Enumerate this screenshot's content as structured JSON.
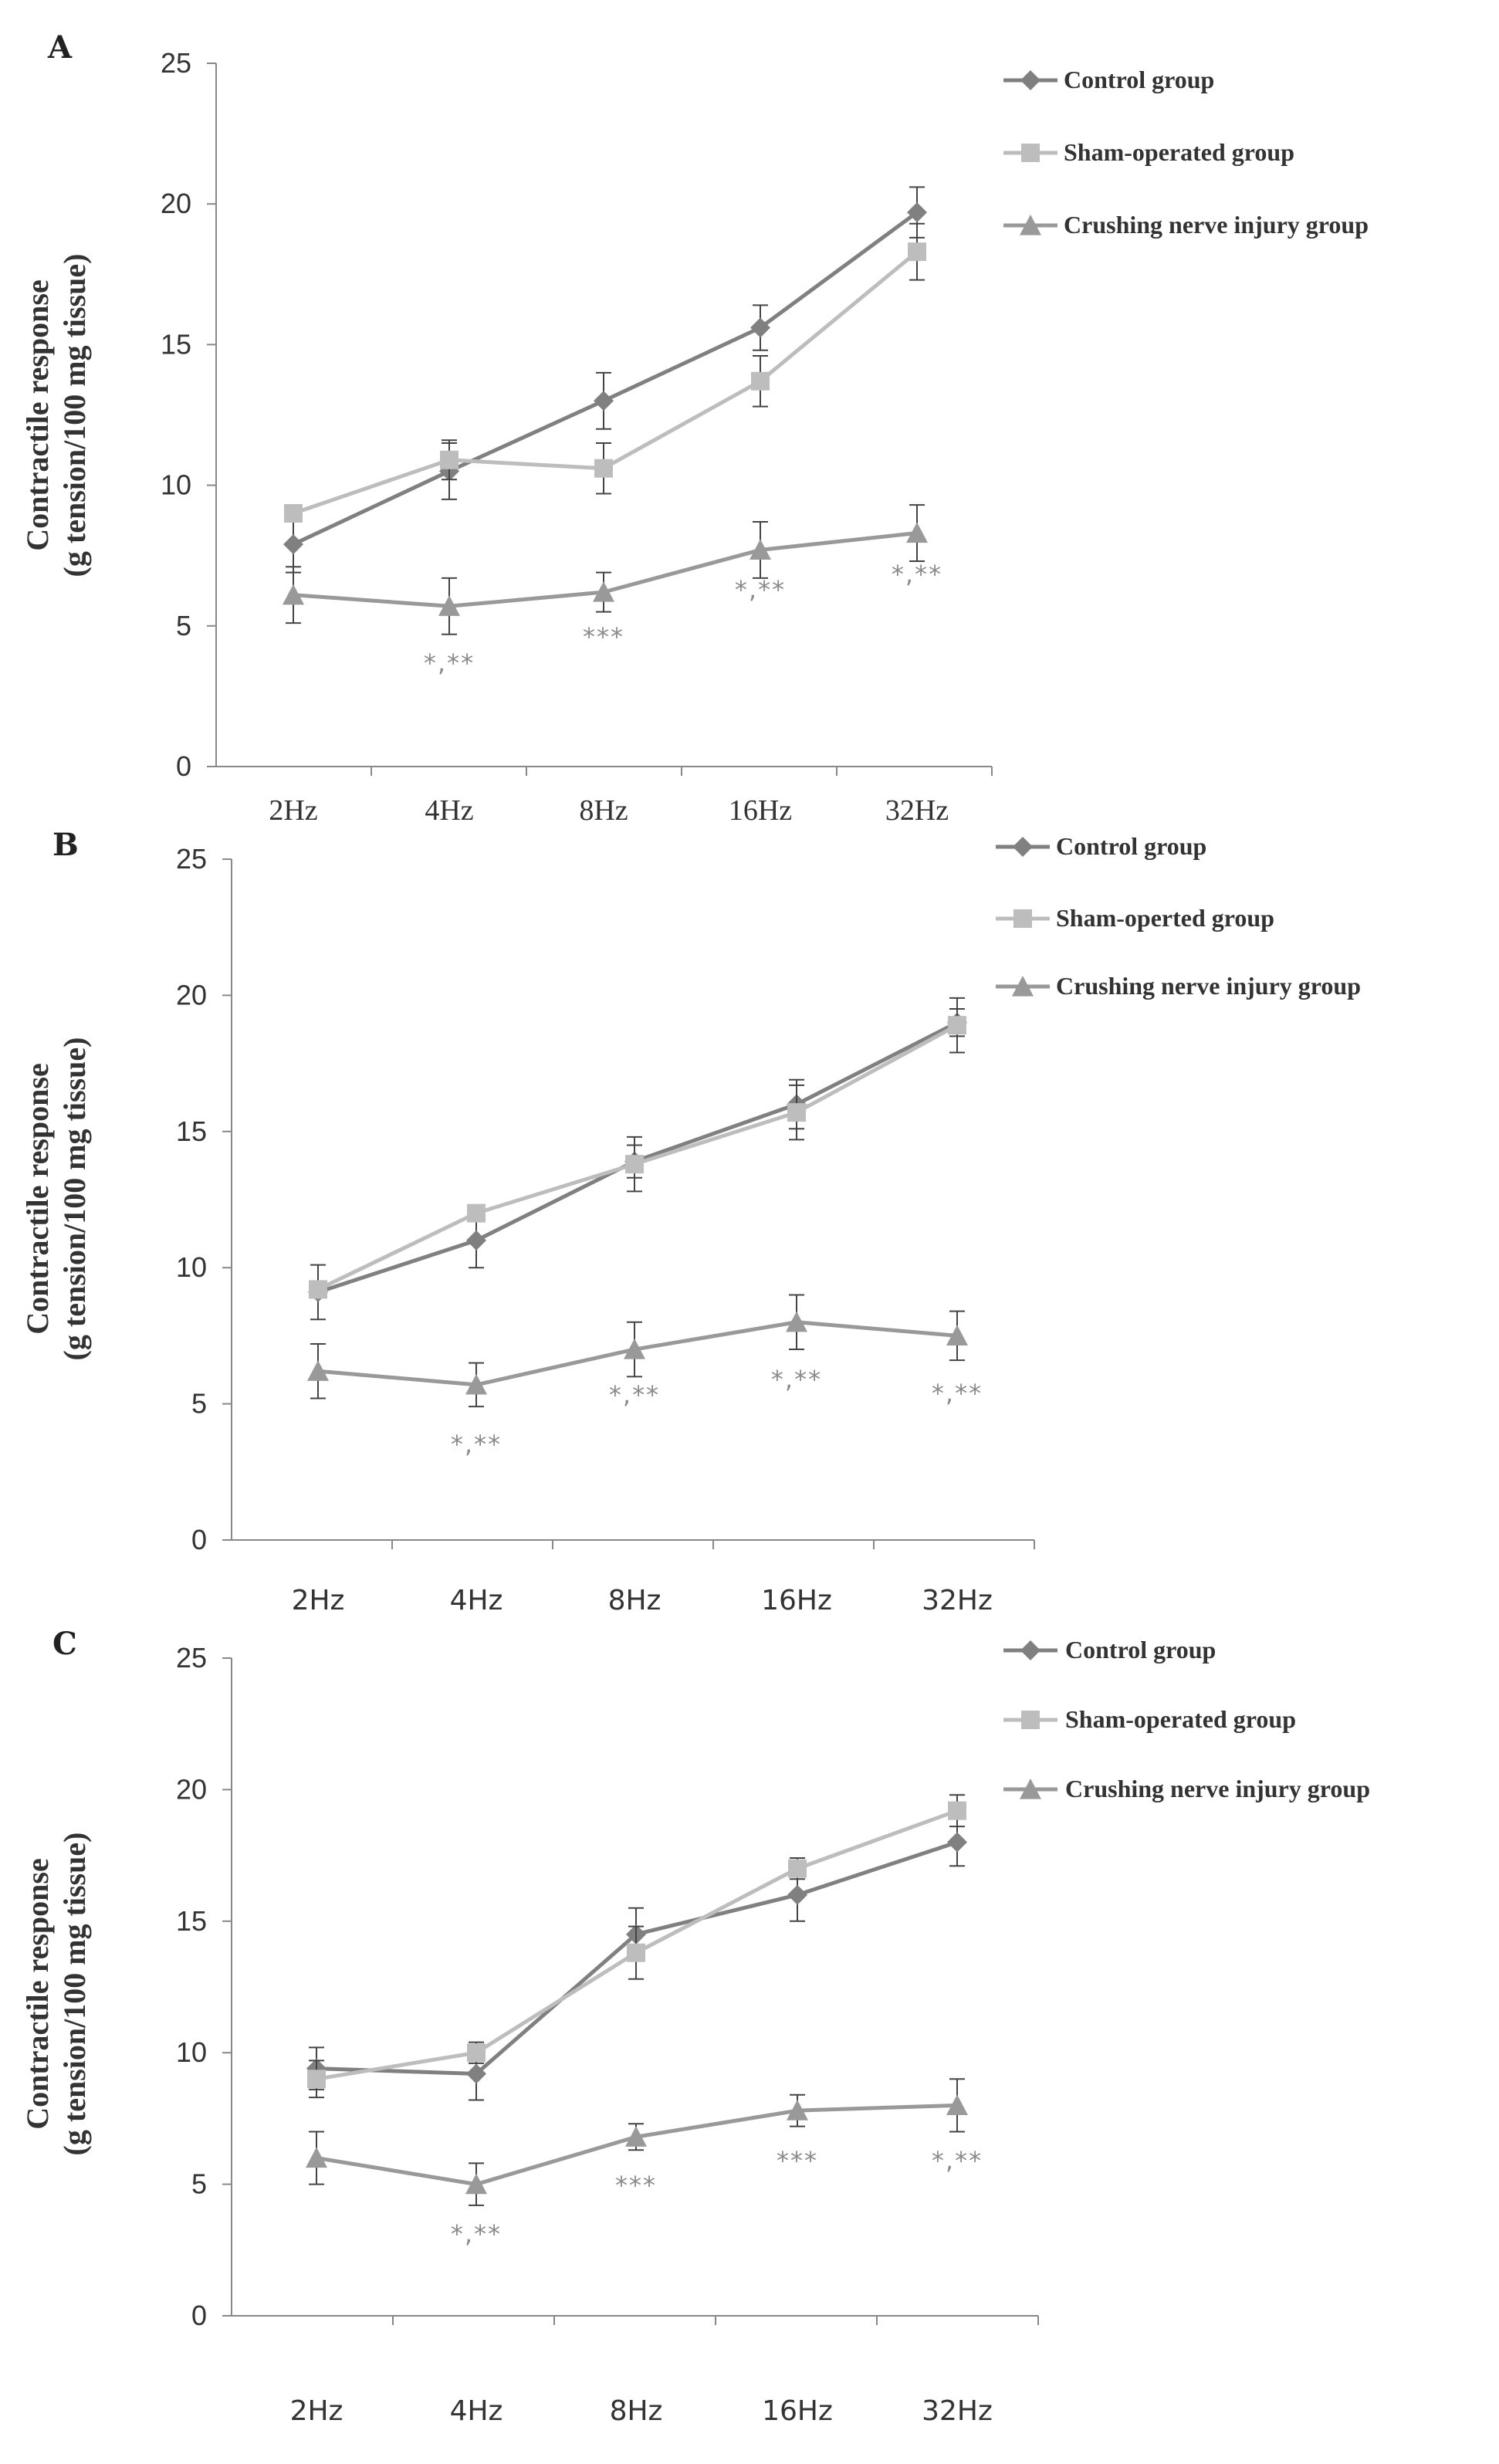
{
  "chart_data": [
    {
      "type": "line",
      "panel_label": "A",
      "title": "",
      "categories": [
        "2Hz",
        "4Hz",
        "8Hz",
        "16Hz",
        "32Hz"
      ],
      "xlabel": "",
      "ylabel_lines": [
        "Contractile response",
        "(g tension/100 mg tissue)"
      ],
      "ylim": [
        0,
        25
      ],
      "yticks": [
        0,
        5,
        10,
        15,
        20,
        25
      ],
      "grid": false,
      "legend_position": "top-right",
      "series": [
        {
          "name": "Control group",
          "marker": "diamond",
          "color": "#808080",
          "values": [
            7.9,
            10.5,
            13.0,
            15.6,
            19.7
          ],
          "errors": [
            1.0,
            1.0,
            1.0,
            0.8,
            0.9
          ]
        },
        {
          "name": "Sham-operated group",
          "marker": "square",
          "color": "#bdbdbd",
          "values": [
            9.0,
            10.9,
            10.6,
            13.7,
            18.3
          ],
          "errors": [
            0.0,
            0.7,
            0.9,
            0.9,
            1.0
          ]
        },
        {
          "name": "Crushing nerve injury group",
          "marker": "triangle",
          "color": "#999999",
          "values": [
            6.1,
            5.7,
            6.2,
            7.7,
            8.3
          ],
          "errors": [
            1.0,
            1.0,
            0.7,
            1.0,
            1.0
          ]
        }
      ],
      "annotations": [
        "",
        "*,**",
        "***",
        "*,**",
        "*,**"
      ]
    },
    {
      "type": "line",
      "panel_label": "B",
      "title": "",
      "categories": [
        "2Hz",
        "4Hz",
        "8Hz",
        "16Hz",
        "32Hz"
      ],
      "xlabel": "",
      "ylabel_lines": [
        "Contractile response",
        "(g tension/100 mg tissue)"
      ],
      "ylim": [
        0,
        25
      ],
      "yticks": [
        0,
        5,
        10,
        15,
        20,
        25
      ],
      "grid": false,
      "legend_position": "top-right",
      "series": [
        {
          "name": "Control group",
          "marker": "diamond",
          "color": "#808080",
          "values": [
            9.1,
            11.0,
            13.9,
            16.0,
            19.0
          ],
          "errors": [
            1.0,
            1.0,
            0.6,
            0.9,
            0.5
          ]
        },
        {
          "name": "Sham-operted group",
          "marker": "square",
          "color": "#bdbdbd",
          "values": [
            9.2,
            12.0,
            13.8,
            15.7,
            18.9
          ],
          "errors": [
            0.0,
            0.0,
            1.0,
            1.0,
            1.0
          ]
        },
        {
          "name": "Crushing nerve injury group",
          "marker": "triangle",
          "color": "#999999",
          "values": [
            6.2,
            5.7,
            7.0,
            8.0,
            7.5
          ],
          "errors": [
            1.0,
            0.8,
            1.0,
            1.0,
            0.9
          ]
        }
      ],
      "annotations": [
        "",
        "*,**",
        "*,**",
        "*,**",
        "*,**"
      ]
    },
    {
      "type": "line",
      "panel_label": "C",
      "title": "",
      "categories": [
        "2Hz",
        "4Hz",
        "8Hz",
        "16Hz",
        "32Hz"
      ],
      "xlabel": "",
      "ylabel_lines": [
        "Contractile response",
        "(g tension/100 mg tissue)"
      ],
      "ylim": [
        0,
        25
      ],
      "yticks": [
        0,
        5,
        10,
        15,
        20,
        25
      ],
      "grid": false,
      "legend_position": "top-right",
      "series": [
        {
          "name": "Control group",
          "marker": "diamond",
          "color": "#808080",
          "values": [
            9.4,
            9.2,
            14.5,
            16.0,
            18.0
          ],
          "errors": [
            0.8,
            1.0,
            1.0,
            1.0,
            0.9
          ]
        },
        {
          "name": "Sham-operated group",
          "marker": "square",
          "color": "#bdbdbd",
          "values": [
            9.0,
            10.0,
            13.8,
            17.0,
            19.2
          ],
          "errors": [
            0.7,
            0.4,
            1.0,
            0.4,
            0.6
          ]
        },
        {
          "name": "Crushing nerve injury group",
          "marker": "triangle",
          "color": "#999999",
          "values": [
            6.0,
            5.0,
            6.8,
            7.8,
            8.0
          ],
          "errors": [
            1.0,
            0.8,
            0.5,
            0.6,
            1.0
          ]
        }
      ],
      "annotations": [
        "",
        "*,**",
        "***",
        "***",
        "*,**"
      ]
    }
  ]
}
